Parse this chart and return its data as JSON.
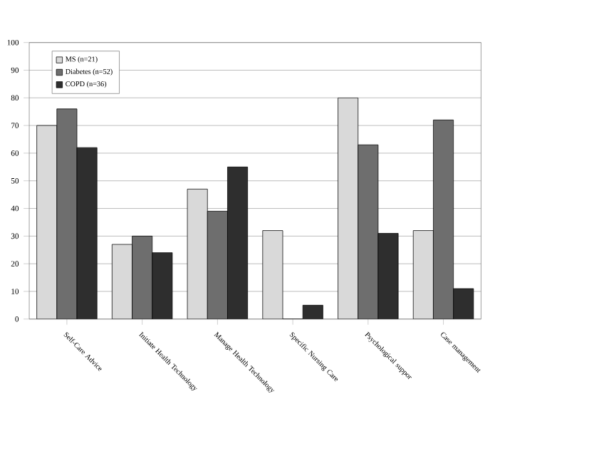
{
  "chart_data": {
    "type": "bar",
    "categories": [
      "Self-Care Advice",
      "Initiate Health Technology",
      "Manage Health Technology",
      "Specific Nursing Care",
      "Psychological suppor",
      "Case management"
    ],
    "series": [
      {
        "name": "MS (n=21)",
        "color": "#d9d9d9",
        "values": [
          70,
          27,
          47,
          32,
          80,
          32
        ]
      },
      {
        "name": "Diabetes (n=52)",
        "color": "#6e6e6e",
        "values": [
          76,
          30,
          39,
          0,
          63,
          72
        ]
      },
      {
        "name": "COPD (n=36)",
        "color": "#2e2e2e",
        "values": [
          62,
          24,
          55,
          5,
          31,
          11
        ]
      }
    ],
    "ylim": [
      0,
      100
    ],
    "yticks": [
      0,
      10,
      20,
      30,
      40,
      50,
      60,
      70,
      80,
      90,
      100
    ],
    "grid": "y",
    "legend": "top left"
  }
}
